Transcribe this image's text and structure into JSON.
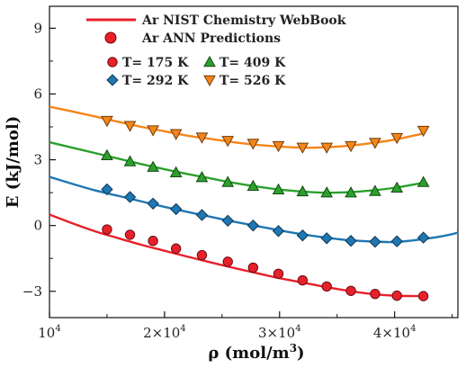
{
  "chart_data": {
    "type": "line",
    "xlabel": "ρ (mol/m",
    "xlabel_sup": "3",
    "xlabel_close": ")",
    "ylabel": "E (kJ/mol)",
    "xlim": [
      10000,
      45500
    ],
    "ylim": [
      -4.2,
      10.0
    ],
    "x_ticks": [
      {
        "value": 10000,
        "base": "10",
        "exp": "4"
      },
      {
        "value": 20000,
        "base": "2×10",
        "exp": "4"
      },
      {
        "value": 30000,
        "base": "3×10",
        "exp": "4"
      },
      {
        "value": 40000,
        "base": "4×10",
        "exp": "4"
      }
    ],
    "y_ticks": [
      {
        "value": -3,
        "label": "−3"
      },
      {
        "value": 0,
        "label": "0"
      },
      {
        "value": 3,
        "label": "3"
      },
      {
        "value": 6,
        "label": "6"
      },
      {
        "value": 9,
        "label": "9"
      }
    ],
    "grid": false,
    "legend": {
      "placement": "top-left",
      "line_label": "Ar NIST Chemistry WebBook",
      "marker_label": "Ar ANN Predictions",
      "line_color": "#e8202a",
      "marker_color": "#e8202a"
    },
    "series": [
      {
        "name": "T= 175 K",
        "color": "#e8202a",
        "marker": "circle",
        "curve": {
          "x": [
            10000,
            12000,
            14000,
            16000,
            18000,
            20000,
            22000,
            24000,
            26000,
            28000,
            30000,
            32000,
            34000,
            36000,
            38000,
            40000,
            42500
          ],
          "y": [
            0.5,
            0.1,
            -0.27,
            -0.58,
            -0.88,
            -1.15,
            -1.42,
            -1.68,
            -1.93,
            -2.17,
            -2.4,
            -2.6,
            -2.8,
            -2.98,
            -3.12,
            -3.2,
            -3.22
          ]
        },
        "points": {
          "x": [
            15000,
            17000,
            19000,
            21000,
            23250,
            25500,
            27700,
            29900,
            32000,
            34100,
            36200,
            38300,
            40200,
            42500
          ],
          "y": [
            -0.18,
            -0.42,
            -0.7,
            -1.05,
            -1.35,
            -1.65,
            -1.92,
            -2.2,
            -2.5,
            -2.78,
            -2.98,
            -3.12,
            -3.2,
            -3.22
          ]
        }
      },
      {
        "name": "T= 292 K",
        "color": "#1f77b4",
        "marker": "diamond",
        "curve": {
          "x": [
            10000,
            12000,
            14000,
            16000,
            18000,
            20000,
            22000,
            24000,
            26000,
            28000,
            30000,
            32000,
            34000,
            36000,
            38000,
            40000,
            42000,
            44000,
            45500
          ],
          "y": [
            2.22,
            1.9,
            1.6,
            1.35,
            1.1,
            0.85,
            0.62,
            0.4,
            0.18,
            -0.02,
            -0.22,
            -0.4,
            -0.55,
            -0.67,
            -0.73,
            -0.75,
            -0.65,
            -0.5,
            -0.33
          ]
        },
        "points": {
          "x": [
            15000,
            17000,
            19000,
            21000,
            23250,
            25500,
            27700,
            29900,
            32000,
            34100,
            36200,
            38300,
            40200,
            42500
          ],
          "y": [
            1.65,
            1.3,
            1.0,
            0.75,
            0.48,
            0.22,
            0.0,
            -0.25,
            -0.45,
            -0.58,
            -0.7,
            -0.74,
            -0.72,
            -0.55
          ]
        }
      },
      {
        "name": "T= 409 K",
        "color": "#2ca02c",
        "marker": "triangle-up",
        "curve": {
          "x": [
            10000,
            12000,
            14000,
            16000,
            18000,
            20000,
            22000,
            24000,
            26000,
            28000,
            30000,
            32000,
            34000,
            36000,
            38000,
            40000,
            42500
          ],
          "y": [
            3.8,
            3.55,
            3.3,
            3.05,
            2.8,
            2.57,
            2.35,
            2.15,
            1.95,
            1.78,
            1.64,
            1.55,
            1.5,
            1.52,
            1.6,
            1.72,
            1.95
          ]
        },
        "points": {
          "x": [
            15000,
            17000,
            19000,
            21000,
            23250,
            25500,
            27700,
            29900,
            32000,
            34100,
            36200,
            38300,
            40200,
            42500
          ],
          "y": [
            3.2,
            2.92,
            2.67,
            2.42,
            2.2,
            1.98,
            1.8,
            1.64,
            1.55,
            1.5,
            1.5,
            1.57,
            1.72,
            1.98
          ]
        }
      },
      {
        "name": "T= 526 K",
        "color": "#f58518",
        "marker": "triangle-down",
        "curve": {
          "x": [
            10000,
            12000,
            14000,
            16000,
            18000,
            20000,
            22000,
            24000,
            26000,
            28000,
            30000,
            32000,
            34000,
            36000,
            38000,
            40000,
            42500
          ],
          "y": [
            5.42,
            5.2,
            4.97,
            4.73,
            4.5,
            4.3,
            4.1,
            3.95,
            3.8,
            3.68,
            3.6,
            3.55,
            3.57,
            3.64,
            3.76,
            3.92,
            4.2
          ]
        },
        "points": {
          "x": [
            15000,
            17000,
            19000,
            21000,
            23250,
            25500,
            27700,
            29900,
            32000,
            34100,
            36200,
            38300,
            40200,
            42500
          ],
          "y": [
            4.78,
            4.55,
            4.35,
            4.18,
            4.02,
            3.87,
            3.74,
            3.63,
            3.56,
            3.56,
            3.63,
            3.78,
            4.0,
            4.33
          ]
        }
      }
    ]
  }
}
